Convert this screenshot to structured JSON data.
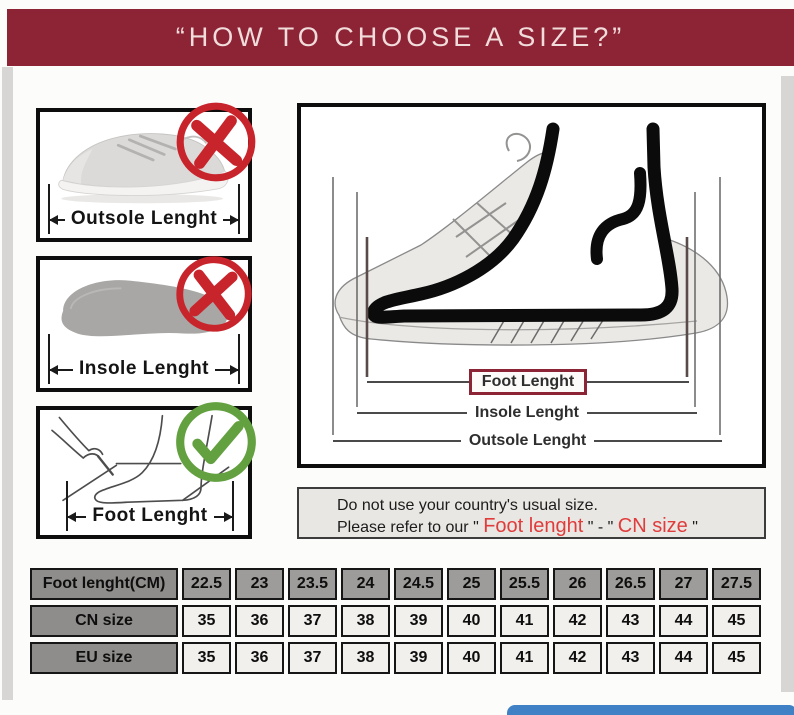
{
  "page": {
    "title": "“HOW TO CHOOSE A SIZE?”"
  },
  "left_panels": [
    {
      "label": "Outsole Lenght",
      "badge": "cross"
    },
    {
      "label": "Insole Lenght",
      "badge": "cross"
    },
    {
      "label": "Foot Lenght",
      "badge": "check"
    }
  ],
  "diagram": {
    "foot_label": "Foot Lenght",
    "insole_label": "Insole Lenght",
    "outsole_label": "Outsole Lenght"
  },
  "note": {
    "line1": "Do not use your country's usual size.",
    "line2_prefix": "Please refer to our \" ",
    "line2_red1": "Foot lenght",
    "line2_mid": " \" - \" ",
    "line2_red2": "CN size",
    "line2_suffix": " \""
  },
  "size_table": {
    "rows": [
      {
        "header": "Foot lenght(CM)",
        "style": "gray",
        "values": [
          "22.5",
          "23",
          "23.5",
          "24",
          "24.5",
          "25",
          "25.5",
          "26",
          "26.5",
          "27",
          "27.5"
        ]
      },
      {
        "header": "CN size",
        "style": "light",
        "values": [
          "35",
          "36",
          "37",
          "38",
          "39",
          "40",
          "41",
          "42",
          "43",
          "44",
          "45"
        ]
      },
      {
        "header": "EU size",
        "style": "light",
        "values": [
          "35",
          "36",
          "37",
          "38",
          "39",
          "40",
          "41",
          "42",
          "43",
          "44",
          "45"
        ]
      }
    ]
  },
  "colors": {
    "accent_red": "#8d2435",
    "mark_red": "#c8242b",
    "mark_green": "#63a03f",
    "note_red": "#e03c3c",
    "scroll_blue": "#3f81c4"
  }
}
